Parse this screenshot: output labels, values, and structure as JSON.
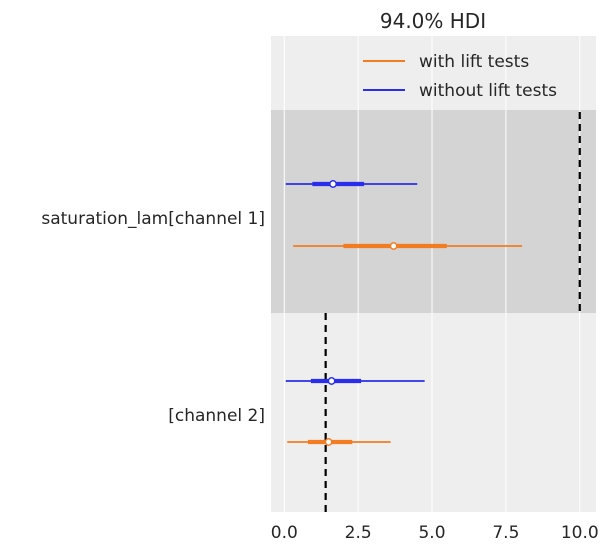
{
  "chart_data": {
    "type": "forest",
    "title": "94.0% HDI",
    "xlabel": "",
    "ylabel": "",
    "xlim": [
      -0.45,
      10.55
    ],
    "xticks": [
      0.0,
      2.5,
      5.0,
      7.5,
      10.0
    ],
    "xtick_labels": [
      "0.0",
      "2.5",
      "5.0",
      "7.5",
      "10.0"
    ],
    "grid": true,
    "legend_position": "top-right",
    "colors": {
      "with lift tests": "#f37c23",
      "without lift tests": "#2a2eec",
      "panel_background": "#eeeeee",
      "shaded_band": "#d4d4d4",
      "grid": "#ffffff",
      "reference_line": "#000000"
    },
    "legend": [
      "with lift tests",
      "without lift tests"
    ],
    "groups": [
      {
        "label": "saturation_lam[channel 1]",
        "shaded": true,
        "reference_value": 10.0,
        "series": [
          {
            "name": "without lift tests",
            "hdi_low": 0.05,
            "iqr_low": 0.95,
            "point": 1.65,
            "iqr_high": 2.7,
            "hdi_high": 4.5
          },
          {
            "name": "with lift tests",
            "hdi_low": 0.3,
            "iqr_low": 2.0,
            "point": 3.7,
            "iqr_high": 5.5,
            "hdi_high": 8.05
          }
        ]
      },
      {
        "label": "[channel 2]",
        "shaded": false,
        "reference_value": 1.4,
        "series": [
          {
            "name": "without lift tests",
            "hdi_low": 0.05,
            "iqr_low": 0.9,
            "point": 1.6,
            "iqr_high": 2.6,
            "hdi_high": 4.75
          },
          {
            "name": "with lift tests",
            "hdi_low": 0.1,
            "iqr_low": 0.8,
            "point": 1.5,
            "iqr_high": 2.3,
            "hdi_high": 3.6
          }
        ]
      }
    ]
  }
}
